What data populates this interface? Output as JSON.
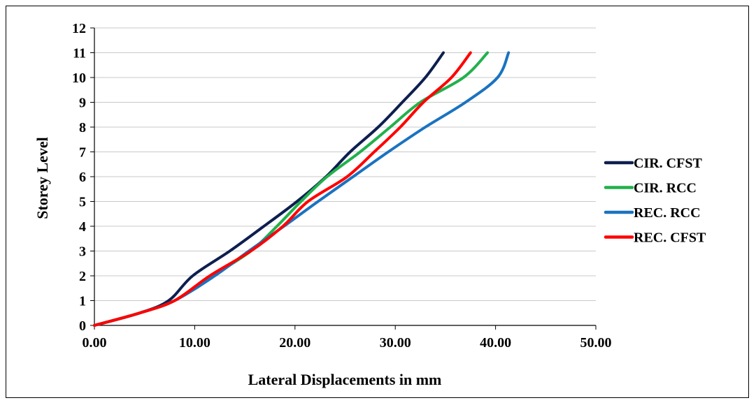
{
  "chart_data": {
    "type": "line",
    "title": "",
    "xlabel": "Lateral Displacements in mm",
    "ylabel": "Storey Level",
    "xlim": [
      0,
      50
    ],
    "ylim": [
      0,
      12
    ],
    "x_ticks": [
      "0.00",
      "10.00",
      "20.00",
      "30.00",
      "40.00",
      "50.00"
    ],
    "y_ticks": [
      "0",
      "1",
      "2",
      "3",
      "4",
      "5",
      "6",
      "7",
      "8",
      "9",
      "10",
      "11",
      "12"
    ],
    "grid": "horizontal",
    "legend_position": "right",
    "series": [
      {
        "name": "CIR. CFST",
        "color": "#0d1f4f",
        "points": [
          [
            0,
            0
          ],
          [
            4.5,
            0.5
          ],
          [
            7.4,
            1
          ],
          [
            9.8,
            2
          ],
          [
            13.5,
            3
          ],
          [
            16.9,
            4
          ],
          [
            20.2,
            5
          ],
          [
            23.1,
            6
          ],
          [
            25.5,
            7
          ],
          [
            28.3,
            8
          ],
          [
            30.7,
            9
          ],
          [
            33,
            10
          ],
          [
            34.8,
            11
          ]
        ]
      },
      {
        "name": "CIR. RCC",
        "color": "#22b14c",
        "points": [
          [
            0,
            0
          ],
          [
            4.5,
            0.5
          ],
          [
            8,
            1
          ],
          [
            11.8,
            2
          ],
          [
            15.6,
            3
          ],
          [
            18.2,
            4
          ],
          [
            20.6,
            5
          ],
          [
            23.2,
            6
          ],
          [
            26.5,
            7
          ],
          [
            29.5,
            8
          ],
          [
            32.5,
            9
          ],
          [
            36.8,
            10
          ],
          [
            39.2,
            11
          ]
        ]
      },
      {
        "name": "REC. RCC",
        "color": "#1a73c0",
        "points": [
          [
            0,
            0
          ],
          [
            4.5,
            0.5
          ],
          [
            8,
            1
          ],
          [
            12,
            2
          ],
          [
            15.4,
            3
          ],
          [
            18.9,
            4
          ],
          [
            22.3,
            5
          ],
          [
            25.8,
            6
          ],
          [
            29.3,
            7
          ],
          [
            33,
            8
          ],
          [
            37,
            9
          ],
          [
            40.2,
            10
          ],
          [
            41.3,
            11
          ]
        ]
      },
      {
        "name": "REC. CFST",
        "color": "#ff0000",
        "points": [
          [
            0,
            0
          ],
          [
            4.5,
            0.5
          ],
          [
            8,
            1
          ],
          [
            11.5,
            2
          ],
          [
            15.6,
            3
          ],
          [
            18.8,
            4
          ],
          [
            21.3,
            5
          ],
          [
            25.2,
            6
          ],
          [
            27.9,
            7
          ],
          [
            30.5,
            8
          ],
          [
            32.8,
            9
          ],
          [
            35.6,
            10
          ],
          [
            37.5,
            11
          ]
        ]
      }
    ]
  }
}
